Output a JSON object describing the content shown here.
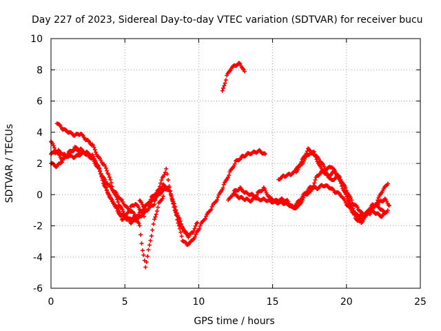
{
  "chart_data": {
    "type": "scatter",
    "title": "Day 227 of 2023, Sidereal Day-to-day VTEC variation (SDTVAR) for receiver bucu",
    "xlabel": "GPS time / hours",
    "ylabel": "SDTVAR / TECUs",
    "xlim": [
      0,
      25
    ],
    "ylim": [
      -6,
      10
    ],
    "xticks": [
      "0",
      "5",
      "10",
      "15",
      "20",
      "25"
    ],
    "yticks": [
      "-6",
      "-4",
      "-2",
      "0",
      "2",
      "4",
      "6",
      "8",
      "10"
    ],
    "grid": true,
    "marker": "+",
    "color": "#ff0000",
    "series": [
      {
        "name": "trace-1",
        "points": [
          [
            0.0,
            2.6
          ],
          [
            0.5,
            2.8
          ],
          [
            1.0,
            2.5
          ],
          [
            1.6,
            2.4
          ],
          [
            2.2,
            2.7
          ],
          [
            2.8,
            2.4
          ],
          [
            3.2,
            1.8
          ],
          [
            3.6,
            0.6
          ],
          [
            4.0,
            -0.2
          ],
          [
            4.4,
            -0.8
          ],
          [
            4.8,
            -1.3
          ],
          [
            5.2,
            -1.6
          ],
          [
            5.6,
            -1.5
          ],
          [
            6.0,
            -1.2
          ],
          [
            6.4,
            -0.8
          ],
          [
            6.8,
            -0.2
          ],
          [
            7.2,
            0.2
          ],
          [
            7.6,
            0.6
          ],
          [
            8.0,
            0.4
          ],
          [
            8.3,
            -0.6
          ],
          [
            8.6,
            -1.8
          ],
          [
            8.9,
            -2.9
          ],
          [
            9.2,
            -3.2
          ],
          [
            9.5,
            -3.0
          ],
          [
            9.8,
            -2.6
          ],
          [
            10.1,
            -2.0
          ],
          [
            10.5,
            -1.4
          ],
          [
            10.9,
            -0.8
          ],
          [
            11.3,
            -0.2
          ],
          [
            11.7,
            0.6
          ],
          [
            12.1,
            1.4
          ],
          [
            12.5,
            2.1
          ],
          [
            12.9,
            2.4
          ],
          [
            13.3,
            2.6
          ],
          [
            13.7,
            2.7
          ],
          [
            14.1,
            2.8
          ],
          [
            14.5,
            2.6
          ]
        ]
      },
      {
        "name": "trace-2",
        "points": [
          [
            0.4,
            4.6
          ],
          [
            0.8,
            4.2
          ],
          [
            1.2,
            4.0
          ],
          [
            1.6,
            3.8
          ],
          [
            2.0,
            3.9
          ],
          [
            2.4,
            3.5
          ],
          [
            2.8,
            3.2
          ],
          [
            3.2,
            2.4
          ],
          [
            3.6,
            1.9
          ],
          [
            3.9,
            1.3
          ],
          [
            4.2,
            0.3
          ],
          [
            4.6,
            -0.6
          ],
          [
            5.0,
            -1.3
          ],
          [
            5.4,
            -1.8
          ],
          [
            5.8,
            -1.6
          ],
          [
            6.2,
            -1.3
          ],
          [
            6.6,
            -0.9
          ],
          [
            7.0,
            -0.6
          ],
          [
            7.3,
            0.4
          ],
          [
            7.6,
            1.2
          ],
          [
            7.8,
            1.6
          ],
          [
            8.0,
            0.6
          ],
          [
            8.2,
            -0.4
          ],
          [
            8.5,
            -1.3
          ],
          [
            8.8,
            -2.0
          ],
          [
            9.0,
            -2.3
          ],
          [
            9.3,
            -2.6
          ]
        ]
      },
      {
        "name": "trace-3",
        "points": [
          [
            0.0,
            3.4
          ],
          [
            0.4,
            2.7
          ],
          [
            0.8,
            2.2
          ],
          [
            1.2,
            2.6
          ],
          [
            1.6,
            3.0
          ],
          [
            2.0,
            2.9
          ],
          [
            2.4,
            2.6
          ],
          [
            2.8,
            2.3
          ],
          [
            3.2,
            1.7
          ],
          [
            3.6,
            1.0
          ],
          [
            4.0,
            0.5
          ],
          [
            4.4,
            0.1
          ],
          [
            4.8,
            -0.4
          ],
          [
            5.2,
            -0.9
          ],
          [
            5.6,
            -1.2
          ],
          [
            6.0,
            -2.0
          ],
          [
            6.2,
            -3.6
          ],
          [
            6.4,
            -4.6
          ],
          [
            6.6,
            -3.6
          ],
          [
            6.8,
            -2.6
          ],
          [
            7.0,
            -1.6
          ],
          [
            7.3,
            -0.6
          ],
          [
            7.6,
            -0.1
          ]
        ]
      },
      {
        "name": "trace-4",
        "points": [
          [
            0.0,
            2.0
          ],
          [
            0.4,
            1.8
          ],
          [
            0.8,
            2.2
          ],
          [
            1.2,
            2.7
          ],
          [
            1.6,
            2.9
          ],
          [
            2.0,
            2.8
          ],
          [
            2.4,
            2.7
          ],
          [
            2.8,
            2.5
          ],
          [
            3.2,
            1.8
          ],
          [
            3.6,
            0.8
          ],
          [
            3.9,
            0.0
          ],
          [
            4.2,
            -0.5
          ],
          [
            4.5,
            -1.0
          ],
          [
            4.8,
            -1.6
          ],
          [
            5.1,
            -1.3
          ],
          [
            5.4,
            -0.8
          ],
          [
            5.7,
            -0.6
          ],
          [
            6.0,
            -0.9
          ],
          [
            6.3,
            -1.4
          ]
        ]
      },
      {
        "name": "trace-5",
        "points": [
          [
            11.6,
            6.6
          ],
          [
            11.9,
            7.6
          ],
          [
            12.2,
            8.1
          ],
          [
            12.5,
            8.3
          ],
          [
            12.8,
            8.4
          ],
          [
            13.1,
            7.9
          ]
        ]
      },
      {
        "name": "trace-6",
        "points": [
          [
            12.0,
            -0.4
          ],
          [
            12.4,
            0.2
          ],
          [
            12.8,
            0.4
          ],
          [
            13.2,
            0.1
          ],
          [
            13.6,
            0.0
          ],
          [
            14.0,
            -0.3
          ],
          [
            14.4,
            -0.3
          ],
          [
            14.8,
            -0.4
          ],
          [
            15.2,
            -0.5
          ],
          [
            15.6,
            -0.5
          ],
          [
            16.0,
            -0.6
          ],
          [
            16.4,
            -0.8
          ],
          [
            16.8,
            -0.4
          ],
          [
            17.2,
            0.1
          ],
          [
            17.6,
            0.5
          ],
          [
            18.0,
            0.4
          ],
          [
            18.4,
            0.6
          ],
          [
            18.8,
            0.5
          ],
          [
            19.2,
            0.2
          ],
          [
            19.6,
            0.0
          ],
          [
            20.0,
            -0.6
          ],
          [
            20.4,
            -1.1
          ],
          [
            20.8,
            -1.4
          ],
          [
            21.2,
            -1.3
          ],
          [
            21.6,
            -1.0
          ],
          [
            22.0,
            -1.2
          ],
          [
            22.4,
            -1.4
          ],
          [
            22.8,
            -1.0
          ]
        ]
      },
      {
        "name": "trace-7",
        "points": [
          [
            12.4,
            0.0
          ],
          [
            12.8,
            -0.2
          ],
          [
            13.2,
            -0.3
          ],
          [
            13.6,
            -0.4
          ],
          [
            14.0,
            0.1
          ],
          [
            14.4,
            0.4
          ],
          [
            14.8,
            -0.2
          ],
          [
            15.2,
            -0.4
          ],
          [
            15.6,
            -0.3
          ],
          [
            16.0,
            -0.4
          ],
          [
            16.4,
            -0.9
          ],
          [
            16.8,
            -0.7
          ],
          [
            17.2,
            0.0
          ],
          [
            17.6,
            0.2
          ],
          [
            18.0,
            1.2
          ],
          [
            18.4,
            1.5
          ],
          [
            18.8,
            1.2
          ],
          [
            19.2,
            1.5
          ],
          [
            19.6,
            1.0
          ],
          [
            20.0,
            0.3
          ],
          [
            20.4,
            -0.5
          ],
          [
            20.8,
            -0.9
          ],
          [
            21.2,
            -1.4
          ],
          [
            21.6,
            -1.2
          ],
          [
            22.0,
            -0.6
          ],
          [
            22.4,
            0.2
          ],
          [
            22.8,
            0.7
          ]
        ]
      },
      {
        "name": "trace-8",
        "points": [
          [
            15.4,
            1.0
          ],
          [
            15.8,
            1.2
          ],
          [
            16.2,
            1.3
          ],
          [
            16.6,
            1.5
          ],
          [
            17.0,
            2.0
          ],
          [
            17.4,
            2.6
          ],
          [
            17.8,
            2.6
          ],
          [
            18.2,
            2.2
          ],
          [
            18.6,
            1.6
          ],
          [
            19.0,
            1.8
          ],
          [
            19.4,
            1.2
          ],
          [
            19.8,
            0.3
          ],
          [
            20.2,
            -0.5
          ],
          [
            20.6,
            -1.2
          ],
          [
            21.0,
            -1.6
          ],
          [
            21.4,
            -1.1
          ],
          [
            21.8,
            -0.9
          ],
          [
            22.2,
            -0.5
          ],
          [
            22.6,
            -0.3
          ],
          [
            22.9,
            -0.7
          ]
        ]
      },
      {
        "name": "trace-9",
        "points": [
          [
            16.6,
            1.6
          ],
          [
            17.0,
            2.2
          ],
          [
            17.4,
            2.9
          ],
          [
            17.8,
            2.7
          ],
          [
            18.2,
            1.8
          ],
          [
            18.6,
            1.4
          ],
          [
            19.0,
            0.9
          ],
          [
            19.4,
            1.2
          ],
          [
            19.8,
            0.6
          ],
          [
            20.2,
            -0.6
          ],
          [
            20.6,
            -1.5
          ],
          [
            21.0,
            -1.8
          ],
          [
            21.4,
            -1.2
          ],
          [
            21.8,
            -0.6
          ],
          [
            22.2,
            -0.8
          ],
          [
            22.6,
            -1.2
          ]
        ]
      },
      {
        "name": "trace-10",
        "points": [
          [
            6.0,
            -0.4
          ],
          [
            6.3,
            -0.8
          ],
          [
            6.6,
            -0.6
          ],
          [
            7.0,
            -0.3
          ],
          [
            7.4,
            0.1
          ],
          [
            7.8,
            0.4
          ],
          [
            8.1,
            0.1
          ],
          [
            8.4,
            -0.8
          ],
          [
            8.7,
            -1.6
          ],
          [
            9.0,
            -2.3
          ],
          [
            9.3,
            -2.7
          ],
          [
            9.6,
            -2.4
          ],
          [
            9.9,
            -1.8
          ]
        ]
      }
    ]
  }
}
